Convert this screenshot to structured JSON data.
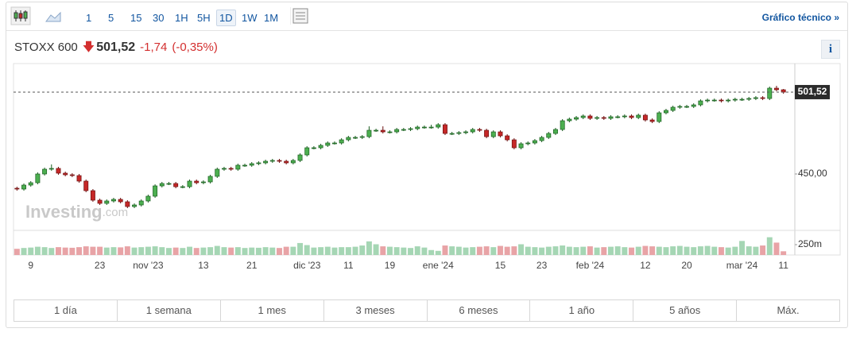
{
  "toolbar": {
    "timeframes": [
      "1",
      "5",
      "15",
      "30",
      "1H",
      "5H",
      "1D",
      "1W",
      "1M"
    ],
    "selected_timeframe": 6,
    "link": "Gráfico técnico »"
  },
  "header": {
    "name": "STOXX 600",
    "price": "501,52",
    "change": "-1,74",
    "change_pct": "(-0,35%)",
    "info": "i"
  },
  "watermark": [
    "Investing",
    ".com"
  ],
  "ranges": [
    "1 día",
    "1 semana",
    "1 mes",
    "3 meses",
    "6 meses",
    "1 año",
    "5 años",
    "Máx."
  ],
  "chart_data": {
    "type": "candlestick",
    "categories": [
      null,
      null,
      "9",
      null,
      null,
      null,
      null,
      null,
      null,
      null,
      null,
      null,
      "23",
      null,
      null,
      null,
      null,
      null,
      null,
      "nov '23",
      null,
      null,
      null,
      null,
      null,
      null,
      null,
      "13",
      null,
      null,
      null,
      null,
      null,
      null,
      "21",
      null,
      null,
      null,
      null,
      null,
      null,
      null,
      "dic '23",
      null,
      null,
      null,
      null,
      null,
      "11",
      null,
      null,
      null,
      null,
      null,
      "19",
      null,
      null,
      null,
      null,
      null,
      null,
      "ene '24",
      null,
      null,
      null,
      null,
      null,
      null,
      null,
      null,
      "15",
      null,
      null,
      null,
      null,
      null,
      "23",
      null,
      null,
      null,
      null,
      null,
      null,
      "feb '24",
      null,
      null,
      null,
      null,
      null,
      null,
      null,
      "12",
      null,
      null,
      null,
      null,
      null,
      "20",
      null,
      null,
      null,
      null,
      null,
      null,
      null,
      "mar '24",
      null,
      null,
      null,
      null,
      null,
      "11"
    ],
    "open": [
      441,
      440.5,
      443,
      444.5,
      450,
      453,
      453.5,
      450.5,
      449.5,
      449,
      445.5,
      439.5,
      433.5,
      431.5,
      433,
      434,
      432.5,
      429.5,
      430.5,
      433,
      436,
      442.5,
      444,
      444,
      442,
      442,
      445.5,
      444.5,
      445,
      448.5,
      453,
      453.5,
      453,
      455.5,
      455.5,
      456.5,
      457,
      458,
      458.5,
      458,
      457,
      458.5,
      462,
      466.5,
      466.5,
      468,
      469.5,
      469.5,
      471.5,
      473,
      473,
      473.5,
      477.5,
      477.5,
      476.5,
      476.5,
      478,
      478,
      478.5,
      479.5,
      479.5,
      479.5,
      481,
      475.5,
      475.5,
      476,
      476.5,
      478,
      477.5,
      473.5,
      476.5,
      474,
      471.5,
      466.5,
      469,
      469.5,
      471,
      473,
      475.5,
      478,
      483.5,
      484.5,
      485.5,
      486.5,
      485,
      485.5,
      485,
      486,
      486,
      486.5,
      485.5,
      487,
      484,
      483,
      488.5,
      490,
      492,
      492.5,
      492.5,
      493.5,
      496,
      496.5,
      496.5,
      496,
      496.5,
      497,
      497,
      497.5,
      498,
      497.5,
      504,
      503
    ],
    "high": [
      442,
      444,
      445.5,
      451,
      454,
      456,
      454.5,
      451.5,
      450.5,
      450,
      446.5,
      440.5,
      434.5,
      434,
      435,
      435,
      433.5,
      431.5,
      434,
      437,
      443.5,
      445,
      445,
      445,
      443,
      446.5,
      446.5,
      446,
      449.5,
      454,
      454.5,
      454.5,
      456.5,
      456.5,
      457.5,
      458,
      459,
      459.5,
      459.5,
      459,
      459.5,
      463,
      467.5,
      467.5,
      469,
      470.5,
      470.5,
      472.5,
      474,
      474,
      474.5,
      480,
      478.5,
      480,
      477.5,
      479,
      479,
      479.5,
      480.5,
      480.5,
      481,
      482,
      482,
      476.5,
      477,
      477.5,
      479,
      479,
      478.5,
      477.5,
      477.5,
      475,
      472.5,
      470,
      470.5,
      472,
      474,
      476.5,
      479,
      484.5,
      485.5,
      486.5,
      487.5,
      487.5,
      486.5,
      486.5,
      487,
      487,
      487.5,
      487.5,
      488,
      488,
      485,
      489.5,
      491,
      493,
      493.5,
      493.5,
      494.5,
      497,
      497.5,
      497.5,
      497.5,
      497.5,
      498,
      498,
      498.5,
      499,
      499,
      505,
      505.5,
      503.5
    ],
    "low": [
      439.5,
      439.5,
      442,
      443.5,
      449,
      452,
      449.5,
      448.5,
      448,
      444.5,
      438.5,
      432.5,
      430.5,
      430.5,
      432,
      431.5,
      428.5,
      428.5,
      429.5,
      432,
      435,
      441.5,
      443,
      441,
      441,
      441,
      443.5,
      443.5,
      444,
      447.5,
      452,
      452,
      452,
      454.5,
      454.5,
      455.5,
      456,
      457,
      457,
      456,
      456,
      457.5,
      461,
      465.5,
      465.5,
      467,
      468.5,
      468.5,
      470.5,
      472,
      472,
      472.5,
      476.5,
      475.5,
      475.5,
      475.5,
      477,
      477,
      477.5,
      478.5,
      478.5,
      478.5,
      474.5,
      474.5,
      474.5,
      475,
      475.5,
      476.5,
      472.5,
      472.5,
      473,
      470.5,
      465.5,
      465.5,
      468,
      468.5,
      470,
      472,
      474.5,
      477,
      482.5,
      483.5,
      484.5,
      484,
      484,
      484,
      484,
      485,
      485,
      484.5,
      484.5,
      483,
      482,
      482,
      487.5,
      489,
      491,
      491.5,
      491.5,
      492.5,
      495,
      495.5,
      495,
      495,
      495.5,
      496,
      496,
      496.5,
      496.5,
      496.5,
      502,
      500.5
    ],
    "close": [
      440.5,
      443,
      444.5,
      450,
      453,
      453.5,
      450.5,
      449.5,
      449,
      445.5,
      439.5,
      433.5,
      431.5,
      433,
      434,
      432.5,
      429.5,
      430.5,
      433,
      436,
      442.5,
      444,
      444,
      442,
      442,
      445.5,
      444.5,
      445,
      448.5,
      453,
      453.5,
      453,
      455.5,
      455.5,
      456.5,
      457,
      458,
      458.5,
      458,
      457,
      458.5,
      462,
      466.5,
      466.5,
      468,
      469.5,
      469.5,
      471.5,
      473,
      473,
      473.5,
      477.5,
      477.5,
      476.5,
      476.5,
      478,
      478,
      478.5,
      479.5,
      479.5,
      479.5,
      481,
      475.5,
      475.5,
      476,
      476.5,
      478,
      477.5,
      473.5,
      476.5,
      474,
      471.5,
      466.5,
      469,
      469.5,
      471,
      473,
      475.5,
      478,
      483.5,
      484.5,
      485.5,
      486.5,
      485,
      485.5,
      485,
      486,
      486,
      486.5,
      485.5,
      487,
      484,
      483,
      488.5,
      490,
      492,
      492.5,
      492.5,
      493.5,
      496,
      496.5,
      496.5,
      496,
      496.5,
      497,
      497,
      497.5,
      498,
      497.5,
      504,
      503,
      501.52
    ],
    "ylim": [
      417,
      519.5
    ],
    "yticks": [
      {
        "value": 450,
        "label": "450,00"
      }
    ],
    "up_color": "#4caf50",
    "down_color": "#c62828",
    "volume_up_color": "#a5d6b4",
    "volume_down_color": "#e8a3a6",
    "volume": {
      "values": [
        150,
        170,
        180,
        200,
        190,
        170,
        190,
        180,
        175,
        190,
        210,
        200,
        200,
        180,
        190,
        185,
        210,
        180,
        190,
        200,
        210,
        190,
        170,
        180,
        170,
        200,
        170,
        180,
        190,
        220,
        190,
        180,
        190,
        170,
        180,
        175,
        190,
        180,
        170,
        200,
        200,
        290,
        240,
        180,
        190,
        200,
        180,
        190,
        190,
        200,
        230,
        330,
        260,
        210,
        200,
        190,
        180,
        170,
        210,
        180,
        120,
        100,
        230,
        210,
        200,
        180,
        190,
        200,
        210,
        190,
        220,
        200,
        210,
        260,
        200,
        190,
        180,
        200,
        210,
        230,
        200,
        190,
        200,
        210,
        180,
        190,
        200,
        210,
        190,
        180,
        200,
        220,
        210,
        200,
        190,
        210,
        220,
        200,
        190,
        210,
        220,
        200,
        190,
        180,
        200,
        340,
        210,
        200,
        230,
        430,
        300,
        90
      ],
      "ylim": [
        0,
        577
      ],
      "yticks": [
        {
          "value": 250,
          "label": "250m"
        }
      ]
    }
  }
}
